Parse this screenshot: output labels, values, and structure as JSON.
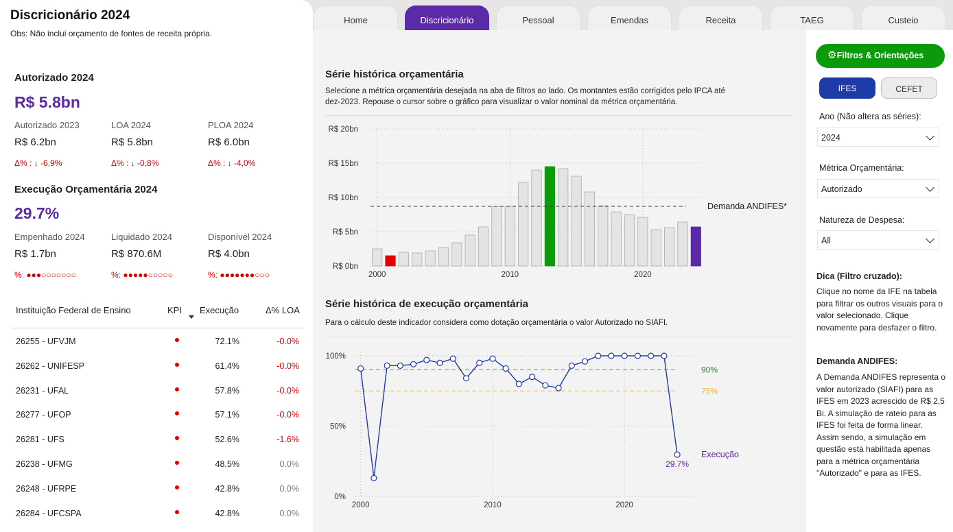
{
  "header": {
    "title": "Discricionário 2024",
    "obs": "Obs: Não inclui orçamento de fontes de receita própria."
  },
  "tabs": [
    "Home",
    "Discricionário",
    "Pessoal",
    "Emendas",
    "Receita",
    "TAEG",
    "Custeio"
  ],
  "active_tab": "Discricionário",
  "autorizado": {
    "title": "Autorizado 2024",
    "value": "R$ 5.8bn",
    "kpis": [
      {
        "label": "Autorizado 2023",
        "value": "R$ 6.2bn",
        "delta": "Δ% : ↓ -6,9%"
      },
      {
        "label": "LOA 2024",
        "value": "R$ 5.8bn",
        "delta": "Δ% : ↓ -0,8%"
      },
      {
        "label": "PLOA 2024",
        "value": "R$ 6.0bn",
        "delta": "Δ% : ↓ -4,0%"
      }
    ]
  },
  "execucao": {
    "title": "Execução Orçamentária 2024",
    "value": "29.7%",
    "kpis": [
      {
        "label": "Empenhado 2024",
        "value": "R$ 1.7bn",
        "delta": "%: ●●●○○○○○○○"
      },
      {
        "label": "Liquidado 2024",
        "value": "R$ 870.6M",
        "delta": "%: ●●●●●○○○○○"
      },
      {
        "label": "Disponível 2024",
        "value": "R$ 4.0bn",
        "delta": "%: ●●●●●●●○○○"
      }
    ]
  },
  "table": {
    "headers": {
      "inst": "Instituição Federal de Ensino",
      "kpi": "KPI",
      "exec": "Execução",
      "delta": "Δ% LOA"
    },
    "rows": [
      {
        "name": "26255 - UFVJM",
        "exec": "72.1%",
        "delta": "-0.0%",
        "neg": true
      },
      {
        "name": "26262 - UNIFESP",
        "exec": "61.4%",
        "delta": "-0.0%",
        "neg": true
      },
      {
        "name": "26231 - UFAL",
        "exec": "57.8%",
        "delta": "-0.0%",
        "neg": true
      },
      {
        "name": "26277 - UFOP",
        "exec": "57.1%",
        "delta": "-0.0%",
        "neg": true
      },
      {
        "name": "26281 - UFS",
        "exec": "52.6%",
        "delta": "-1.6%",
        "neg": true
      },
      {
        "name": "26238 - UFMG",
        "exec": "48.5%",
        "delta": "0.0%",
        "neg": false
      },
      {
        "name": "26248 - UFRPE",
        "exec": "42.8%",
        "delta": "0.0%",
        "neg": false
      },
      {
        "name": "26284 - UFCSPA",
        "exec": "42.8%",
        "delta": "0.0%",
        "neg": false
      }
    ]
  },
  "serie_orc": {
    "title": "Série histórica orçamentária",
    "desc1": "Selecione a métrica orçamentária desejada na aba de filtros ao lado. Os montantes estão corrigidos pelo IPCA até",
    "desc2": "dez-2023. Repouse o cursor sobre o gráfico para visualizar o valor nominal da métrica orçamentária."
  },
  "serie_exe": {
    "title": "Série histórica de execução orçamentária",
    "desc": "Para o cálculo deste indicador considera como dotação orçamentária o valor Autorizado no SIAFI."
  },
  "sidebar": {
    "filter_button": "Filtros & Orientações",
    "seg_on": "IFES",
    "seg_off": "CEFET",
    "ano_label": "Ano (Não altera as séries):",
    "ano_value": "2024",
    "metrica_label": "Métrica Orçamentária:",
    "metrica_value": "Autorizado",
    "natureza_label": "Natureza de Despesa:",
    "natureza_value": "All",
    "dica_title": "Dica (Filtro cruzado):",
    "dica_text": "Clique no nome da IFE na tabela para filtrar os outros visuais para o valor selecionado. Clique novamente para desfazer o filtro.",
    "andifes_title": "Demanda ANDIFES:",
    "andifes_text": "A Demanda ANDIFES representa o valor autorizado (SIAFI) para as IFES em 2023 acrescido de R$ 2,5 Bi. A simulação de rateio para as IFES foi feita de forma linear. Assim sendo, a simulação em questão está habilitada apenas para a métrica orçamentária \"Autorizado\" e para as IFES."
  },
  "colors": {
    "accent": "#5b2aa8",
    "green": "#0a9b0a",
    "red": "#e00000",
    "blue": "#1e3ca8",
    "bar": "#e4e4e4"
  },
  "chart_data": [
    {
      "type": "bar",
      "x": [
        2000,
        2001,
        2002,
        2003,
        2004,
        2005,
        2006,
        2007,
        2008,
        2009,
        2010,
        2011,
        2012,
        2013,
        2014,
        2015,
        2016,
        2017,
        2018,
        2019,
        2020,
        2021,
        2022,
        2023,
        2024
      ],
      "values": [
        2.5,
        1.5,
        2.0,
        1.9,
        2.2,
        2.7,
        3.4,
        4.5,
        5.7,
        8.7,
        8.7,
        12.2,
        14.0,
        14.5,
        14.2,
        13.1,
        10.8,
        8.8,
        7.9,
        7.5,
        7.1,
        5.3,
        5.6,
        6.4,
        5.7
      ],
      "highlight": {
        "2001": "#e00000",
        "2013": "#0a9b0a",
        "2024": "#5b2aa8"
      },
      "ylim": [
        0,
        20
      ],
      "yticks": [
        "R$ 0bn",
        "R$ 5bn",
        "R$ 10bn",
        "R$ 15bn",
        "R$ 20bn"
      ],
      "xticks": [
        "2000",
        "2010",
        "2020"
      ],
      "reference_line": {
        "label": "Demanda ANDIFES*",
        "value": 8.7
      }
    },
    {
      "type": "line",
      "x": [
        2000,
        2001,
        2002,
        2003,
        2004,
        2005,
        2006,
        2007,
        2008,
        2009,
        2010,
        2011,
        2012,
        2013,
        2014,
        2015,
        2016,
        2017,
        2018,
        2019,
        2020,
        2021,
        2022,
        2023,
        2024
      ],
      "values": [
        91,
        13,
        93,
        93,
        94,
        97,
        95,
        98,
        84,
        95,
        98,
        91,
        80,
        85,
        79,
        77,
        93,
        96,
        100,
        100,
        100,
        100,
        100,
        100,
        29.7
      ],
      "ylim": [
        0,
        100
      ],
      "yticks": [
        "0%",
        "50%",
        "100%"
      ],
      "xticks": [
        "2000",
        "2010",
        "2020"
      ],
      "series_label": "Execução",
      "last_label": "29.7%",
      "reference_lines": [
        {
          "label": "90%",
          "value": 90,
          "color": "#2eb82e"
        },
        {
          "label": "75%",
          "value": 75,
          "color": "#f5b041"
        }
      ]
    }
  ]
}
